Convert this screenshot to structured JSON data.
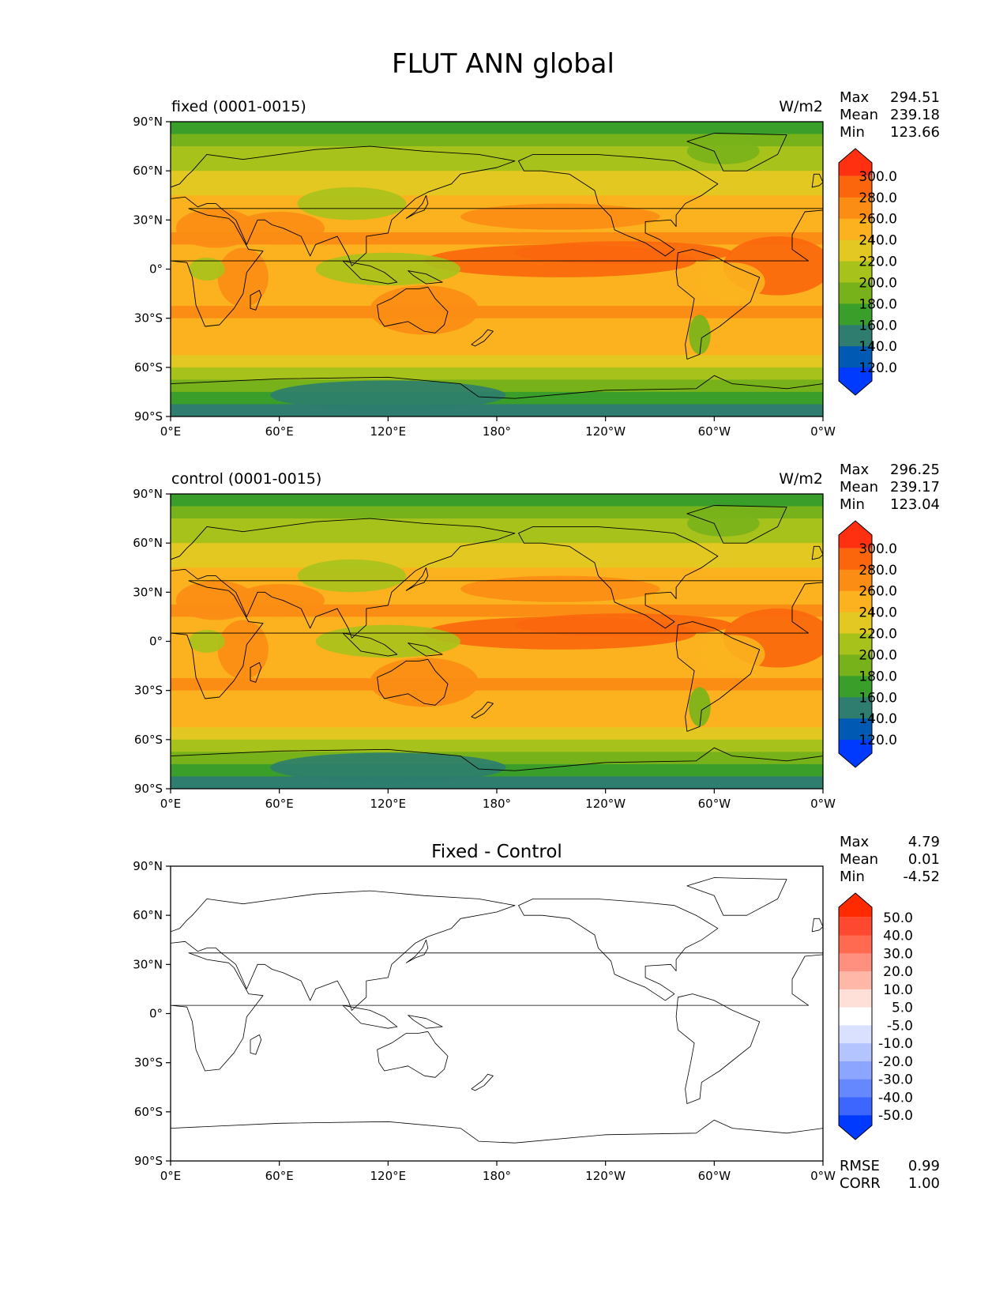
{
  "title": "FLUT ANN global",
  "lat_ticks": [
    "90°N",
    "60°N",
    "30°N",
    "0°",
    "30°S",
    "60°S",
    "90°S"
  ],
  "lon_ticks": [
    "0°E",
    "60°E",
    "120°E",
    "180°",
    "120°W",
    "60°W",
    "0°W"
  ],
  "stat_labels": {
    "max": "Max",
    "mean": "Mean",
    "min": "Min",
    "rmse": "RMSE",
    "corr": "CORR"
  },
  "colors": {
    "full_field": [
      "#0039ff",
      "#0059b2",
      "#2e7d6e",
      "#3a9e2a",
      "#78b21a",
      "#a8c21c",
      "#e2c820",
      "#fbb21e",
      "#fb8c14",
      "#fb660c",
      "#ff3010"
    ],
    "difference": [
      "#0039ff",
      "#3d66ff",
      "#6688ff",
      "#8ca6ff",
      "#b3c4ff",
      "#d9e1ff",
      "#ffffff",
      "#ffe0d9",
      "#ffb8a8",
      "#ff9080",
      "#ff6a50",
      "#ff4830",
      "#ff2a00"
    ]
  },
  "chart_data": [
    {
      "type": "heatmap",
      "left_title": "fixed (0001-0015)",
      "units": "W/m2",
      "stats": {
        "max": "294.51",
        "mean": "239.18",
        "min": "123.66"
      },
      "colorbar_levels": [
        "300.0",
        "280.0",
        "260.0",
        "240.0",
        "220.0",
        "200.0",
        "180.0",
        "160.0",
        "140.0",
        "120.0"
      ],
      "zonal_band_values": [
        170,
        195,
        205,
        215,
        225,
        235,
        245,
        250,
        255,
        260,
        255,
        245,
        240,
        245,
        255,
        260,
        255,
        250,
        240,
        225,
        210,
        195,
        175,
        150
      ],
      "xlim": [
        0,
        360
      ],
      "ylim": [
        -90,
        90
      ]
    },
    {
      "type": "heatmap",
      "left_title": "control (0001-0015)",
      "units": "W/m2",
      "stats": {
        "max": "296.25",
        "mean": "239.17",
        "min": "123.04"
      },
      "colorbar_levels": [
        "300.0",
        "280.0",
        "260.0",
        "240.0",
        "220.0",
        "200.0",
        "180.0",
        "160.0",
        "140.0",
        "120.0"
      ],
      "zonal_band_values": [
        170,
        195,
        205,
        215,
        225,
        235,
        245,
        250,
        255,
        260,
        255,
        245,
        240,
        245,
        255,
        260,
        255,
        250,
        240,
        225,
        210,
        195,
        175,
        150
      ],
      "xlim": [
        0,
        360
      ],
      "ylim": [
        -90,
        90
      ]
    },
    {
      "type": "heatmap",
      "center_title": "Fixed - Control",
      "stats": {
        "max": "4.79",
        "mean": "0.01",
        "min": "-4.52",
        "rmse": "0.99",
        "corr": "1.00"
      },
      "colorbar_levels": [
        "50.0",
        "40.0",
        "30.0",
        "20.0",
        "10.0",
        "5.0",
        "-5.0",
        "-10.0",
        "-20.0",
        "-30.0",
        "-40.0",
        "-50.0"
      ],
      "zonal_band_values": [
        0
      ],
      "xlim": [
        0,
        360
      ],
      "ylim": [
        -90,
        90
      ]
    }
  ]
}
